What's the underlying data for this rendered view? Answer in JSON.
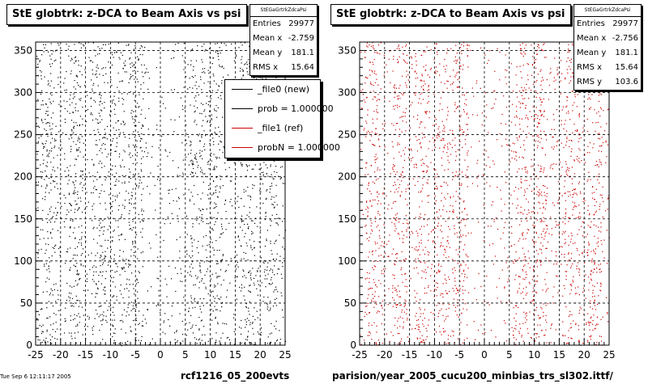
{
  "left_panel": {
    "title": "StE globtrk: z-DCA to Beam Axis vs psi",
    "stats_name": "StEGaGrtrkZdcaPsi",
    "stats": [
      {
        "label": "Entries",
        "value": "29977"
      },
      {
        "label": "Mean x",
        "value": "-2.759"
      },
      {
        "label": "Mean y",
        "value": "181.1"
      },
      {
        "label": "RMS x",
        "value": "15.64"
      }
    ],
    "legend": [
      {
        "label": "_file0 (new)",
        "color": "#000000"
      },
      {
        "label": "prob = 1.000000",
        "color": "#000000"
      },
      {
        "label": "_file1 (ref)",
        "color": "#cc0000"
      },
      {
        "label": "probN = 1.000000",
        "color": "#cc0000"
      }
    ],
    "caption": "rcf1216_05_200evts"
  },
  "right_panel": {
    "title": "StE globtrk: z-DCA to Beam Axis vs psi",
    "stats_name": "StEGaGrtrkZdcaPsi",
    "stats": [
      {
        "label": "Entries",
        "value": "29977"
      },
      {
        "label": "Mean x",
        "value": "-2.756"
      },
      {
        "label": "Mean y",
        "value": "181.1"
      },
      {
        "label": "RMS x",
        "value": "15.64"
      },
      {
        "label": "RMS y",
        "value": "103.6"
      }
    ],
    "caption": "parision/year_2005_cucu200_minbias_trs_sl302.ittf/"
  },
  "timestamp": "Tue Sep 6 12:11:17 2005",
  "chart_data": [
    {
      "type": "scatter",
      "title": "StE globtrk: z-DCA to Beam Axis vs psi",
      "xlim": [
        -25,
        25
      ],
      "ylim": [
        0,
        360
      ],
      "x_ticks": [
        -25,
        -20,
        -15,
        -10,
        -5,
        0,
        5,
        10,
        15,
        20,
        25
      ],
      "y_ticks": [
        0,
        50,
        100,
        150,
        200,
        250,
        300,
        350
      ],
      "grid": true,
      "marker_color": "#000000",
      "entries": 29977,
      "mean_x": -2.759,
      "mean_y": 181.1,
      "rms_x": 15.64,
      "legend_position": "top-right"
    },
    {
      "type": "scatter",
      "title": "StE globtrk: z-DCA to Beam Axis vs psi",
      "xlim": [
        -25,
        25
      ],
      "ylim": [
        0,
        360
      ],
      "x_ticks": [
        -25,
        -20,
        -15,
        -10,
        -5,
        0,
        5,
        10,
        15,
        20,
        25
      ],
      "y_ticks": [
        0,
        50,
        100,
        150,
        200,
        250,
        300,
        350
      ],
      "grid": true,
      "marker_color": "#cc0000",
      "entries": 29977,
      "mean_x": -2.756,
      "mean_y": 181.1,
      "rms_x": 15.64,
      "rms_y": 103.6
    }
  ]
}
